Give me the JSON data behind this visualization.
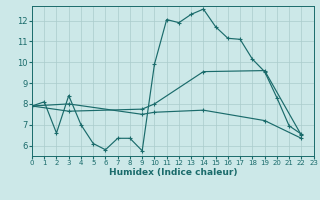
{
  "xlabel": "Humidex (Indice chaleur)",
  "xlim": [
    0,
    23
  ],
  "ylim": [
    5.5,
    12.7
  ],
  "yticks": [
    6,
    7,
    8,
    9,
    10,
    11,
    12
  ],
  "xticks": [
    0,
    1,
    2,
    3,
    4,
    5,
    6,
    7,
    8,
    9,
    10,
    11,
    12,
    13,
    14,
    15,
    16,
    17,
    18,
    19,
    20,
    21,
    22,
    23
  ],
  "bg_color": "#cce8e8",
  "grid_color": "#aacccc",
  "line_color": "#1a6b6b",
  "line1_x": [
    0,
    1,
    2,
    3,
    4,
    5,
    6,
    7,
    8,
    9,
    10,
    11,
    12,
    13,
    14,
    15,
    16,
    17,
    18,
    19,
    20,
    21,
    22
  ],
  "line1_y": [
    7.9,
    8.1,
    6.6,
    8.4,
    7.0,
    6.1,
    5.8,
    6.35,
    6.35,
    5.75,
    9.9,
    12.05,
    11.9,
    12.3,
    12.55,
    11.7,
    11.15,
    11.1,
    10.15,
    9.55,
    8.3,
    6.95,
    6.55
  ],
  "line2_x": [
    0,
    3,
    9,
    10,
    14,
    19,
    22
  ],
  "line2_y": [
    7.9,
    7.65,
    7.75,
    8.0,
    9.55,
    9.6,
    6.5
  ],
  "line3_x": [
    0,
    3,
    9,
    10,
    14,
    19,
    22
  ],
  "line3_y": [
    7.9,
    8.0,
    7.5,
    7.6,
    7.7,
    7.2,
    6.35
  ],
  "lw": 0.85,
  "ms": 2.5
}
